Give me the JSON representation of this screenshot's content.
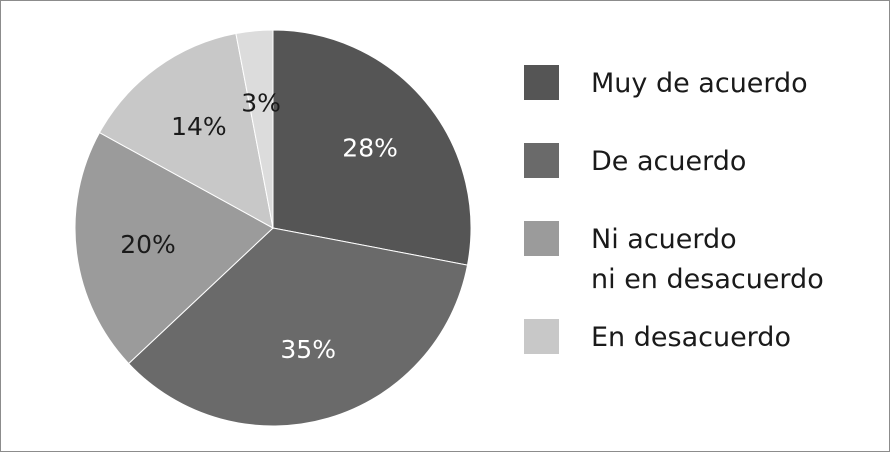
{
  "chart_data": {
    "type": "pie",
    "title": "",
    "start_angle_deg": 0,
    "direction": "clockwise",
    "slices": [
      {
        "label_lines": [
          "Muy de acuerdo"
        ],
        "value": 28,
        "display": "28%",
        "color": "#555555",
        "text_color": "#ffffff"
      },
      {
        "label_lines": [
          "De acuerdo"
        ],
        "value": 35,
        "display": "35%",
        "color": "#6a6a6a",
        "text_color": "#ffffff"
      },
      {
        "label_lines": [
          "Ni acuerdo",
          "ni en desacuerdo"
        ],
        "value": 20,
        "display": "20%",
        "color": "#9b9b9b",
        "text_color": "#1a1a1a"
      },
      {
        "label_lines": [
          "En desacuerdo"
        ],
        "value": 14,
        "display": "14%",
        "color": "#c8c8c8",
        "text_color": "#1a1a1a"
      },
      {
        "label_lines": [],
        "value": 3,
        "display": "3%",
        "color": "#dcdcdc",
        "text_color": "#1a1a1a"
      }
    ],
    "legend": {
      "position": "right"
    }
  }
}
